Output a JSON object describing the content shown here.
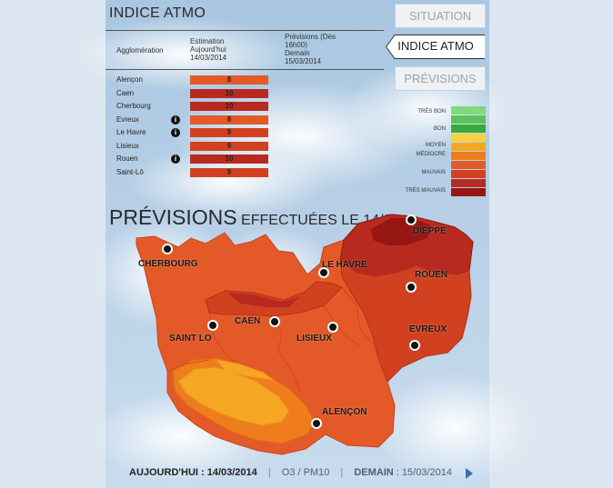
{
  "header": {
    "title": "INDICE ATMO"
  },
  "table": {
    "col_agglomeration": "Agglomération",
    "col_estimation": "Estimation\nAujourd'hui\n14/03/2014",
    "col_prevision": "Prévisions (Dès\n16h00)\nDemain\n15/03/2014",
    "rows": [
      {
        "name": "Alençon",
        "value": "8",
        "info": false,
        "color": "#e35a28"
      },
      {
        "name": "Caen",
        "value": "10",
        "info": false,
        "color": "#b82a20"
      },
      {
        "name": "Cherbourg",
        "value": "10",
        "info": false,
        "color": "#b82a20"
      },
      {
        "name": "Evreux",
        "value": "8",
        "info": true,
        "color": "#e35a28"
      },
      {
        "name": "Le Havre",
        "value": "9",
        "info": true,
        "color": "#d2411f"
      },
      {
        "name": "Lisieux",
        "value": "9",
        "info": false,
        "color": "#d2411f"
      },
      {
        "name": "Rouen",
        "value": "10",
        "info": true,
        "color": "#b82a20"
      },
      {
        "name": "Saint-Lô",
        "value": "9",
        "info": false,
        "color": "#d2411f"
      }
    ],
    "info_icon": "info-icon",
    "info_glyph": "i"
  },
  "tabs": [
    {
      "label": "SITUATION",
      "active": false
    },
    {
      "label": "INDICE ATMO",
      "active": true
    },
    {
      "label": "PRÉVISIONS",
      "active": false
    }
  ],
  "legend": {
    "labels": [
      "TRÈS BON",
      "BON",
      "MOYEN",
      "MÉDIOCRE",
      "MAUVAIS",
      "TRÈS MAUVAIS"
    ],
    "colors": [
      "#7fd97f",
      "#5cc25c",
      "#3aa83a",
      "#f5d23f",
      "#f5a623",
      "#ef7d1e",
      "#e35a28",
      "#d2411f",
      "#b82a20",
      "#961612"
    ]
  },
  "map": {
    "title_big": "PRÉVISIONS",
    "title_small": " EFFECTUÉES LE 14/03",
    "cities": [
      "DIEPPE",
      "CHERBOURG",
      "LE HAVRE",
      "ROUEN",
      "CAEN",
      "EVREUX",
      "SAINT LO",
      "LISIEUX",
      "ALENÇON"
    ],
    "colors": {
      "mediocre": "#f5a623",
      "mauvais_light": "#ef7d1e",
      "mauvais": "#e35a28",
      "mauvais_dark": "#d2411f",
      "tres_mauvais": "#b82a20",
      "tres_mauvais_dark": "#961612"
    }
  },
  "footer": {
    "today_label": "AUJOURD'HUI : 14/03/2014",
    "pollutant": "O3 / PM10",
    "tomorrow_label": "DEMAIN",
    "tomorrow_date": " : 15/03/2014",
    "separator": "|"
  }
}
